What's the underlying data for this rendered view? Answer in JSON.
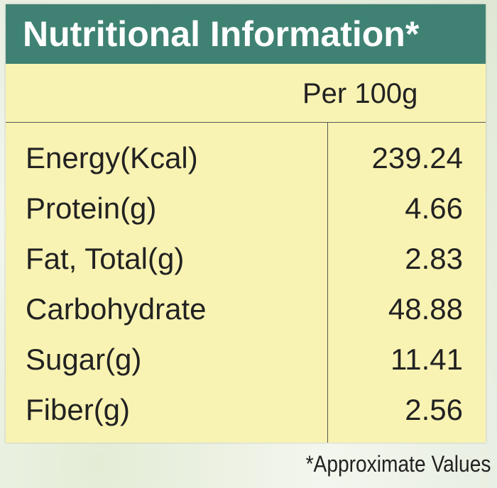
{
  "header": {
    "title": "Nutritional Information*"
  },
  "table": {
    "column_header": "Per 100g",
    "rows": [
      [
        "Energy(Kcal)",
        239.24
      ],
      [
        "Protein(g)",
        4.66
      ],
      [
        "Fat, Total(g)",
        2.83
      ],
      [
        "Carbohydrate",
        48.88
      ],
      [
        "Sugar(g)",
        11.41
      ],
      [
        "Fiber(g)",
        2.56
      ]
    ]
  },
  "footnote": "*Approximate Values"
}
